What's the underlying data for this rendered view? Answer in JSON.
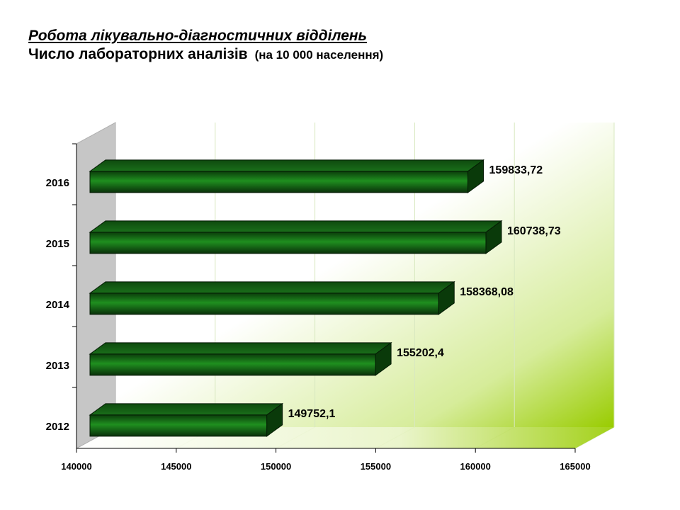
{
  "header": {
    "title": "Робота лікувально-діагностичних відділень",
    "subtitle": "Число лабораторних аналізів",
    "unit": "(на 10 000 населення)"
  },
  "colors": {
    "bar": "#1a7a1a",
    "bar_dark": "#0b3d0b",
    "background_accent": "#99cc00"
  },
  "chart_data": {
    "type": "bar",
    "orientation": "horizontal",
    "categories": [
      "2012",
      "2013",
      "2014",
      "2015",
      "2016"
    ],
    "values": [
      149752.1,
      155202.4,
      158368.08,
      160738.73,
      159833.72
    ],
    "value_labels": [
      "149752,1",
      "155202,4",
      "158368,08",
      "160738,73",
      "159833,72"
    ],
    "xlim": [
      140000,
      165000
    ],
    "xticks": [
      140000,
      145000,
      150000,
      155000,
      160000,
      165000
    ],
    "grid": true,
    "legend": "none"
  }
}
